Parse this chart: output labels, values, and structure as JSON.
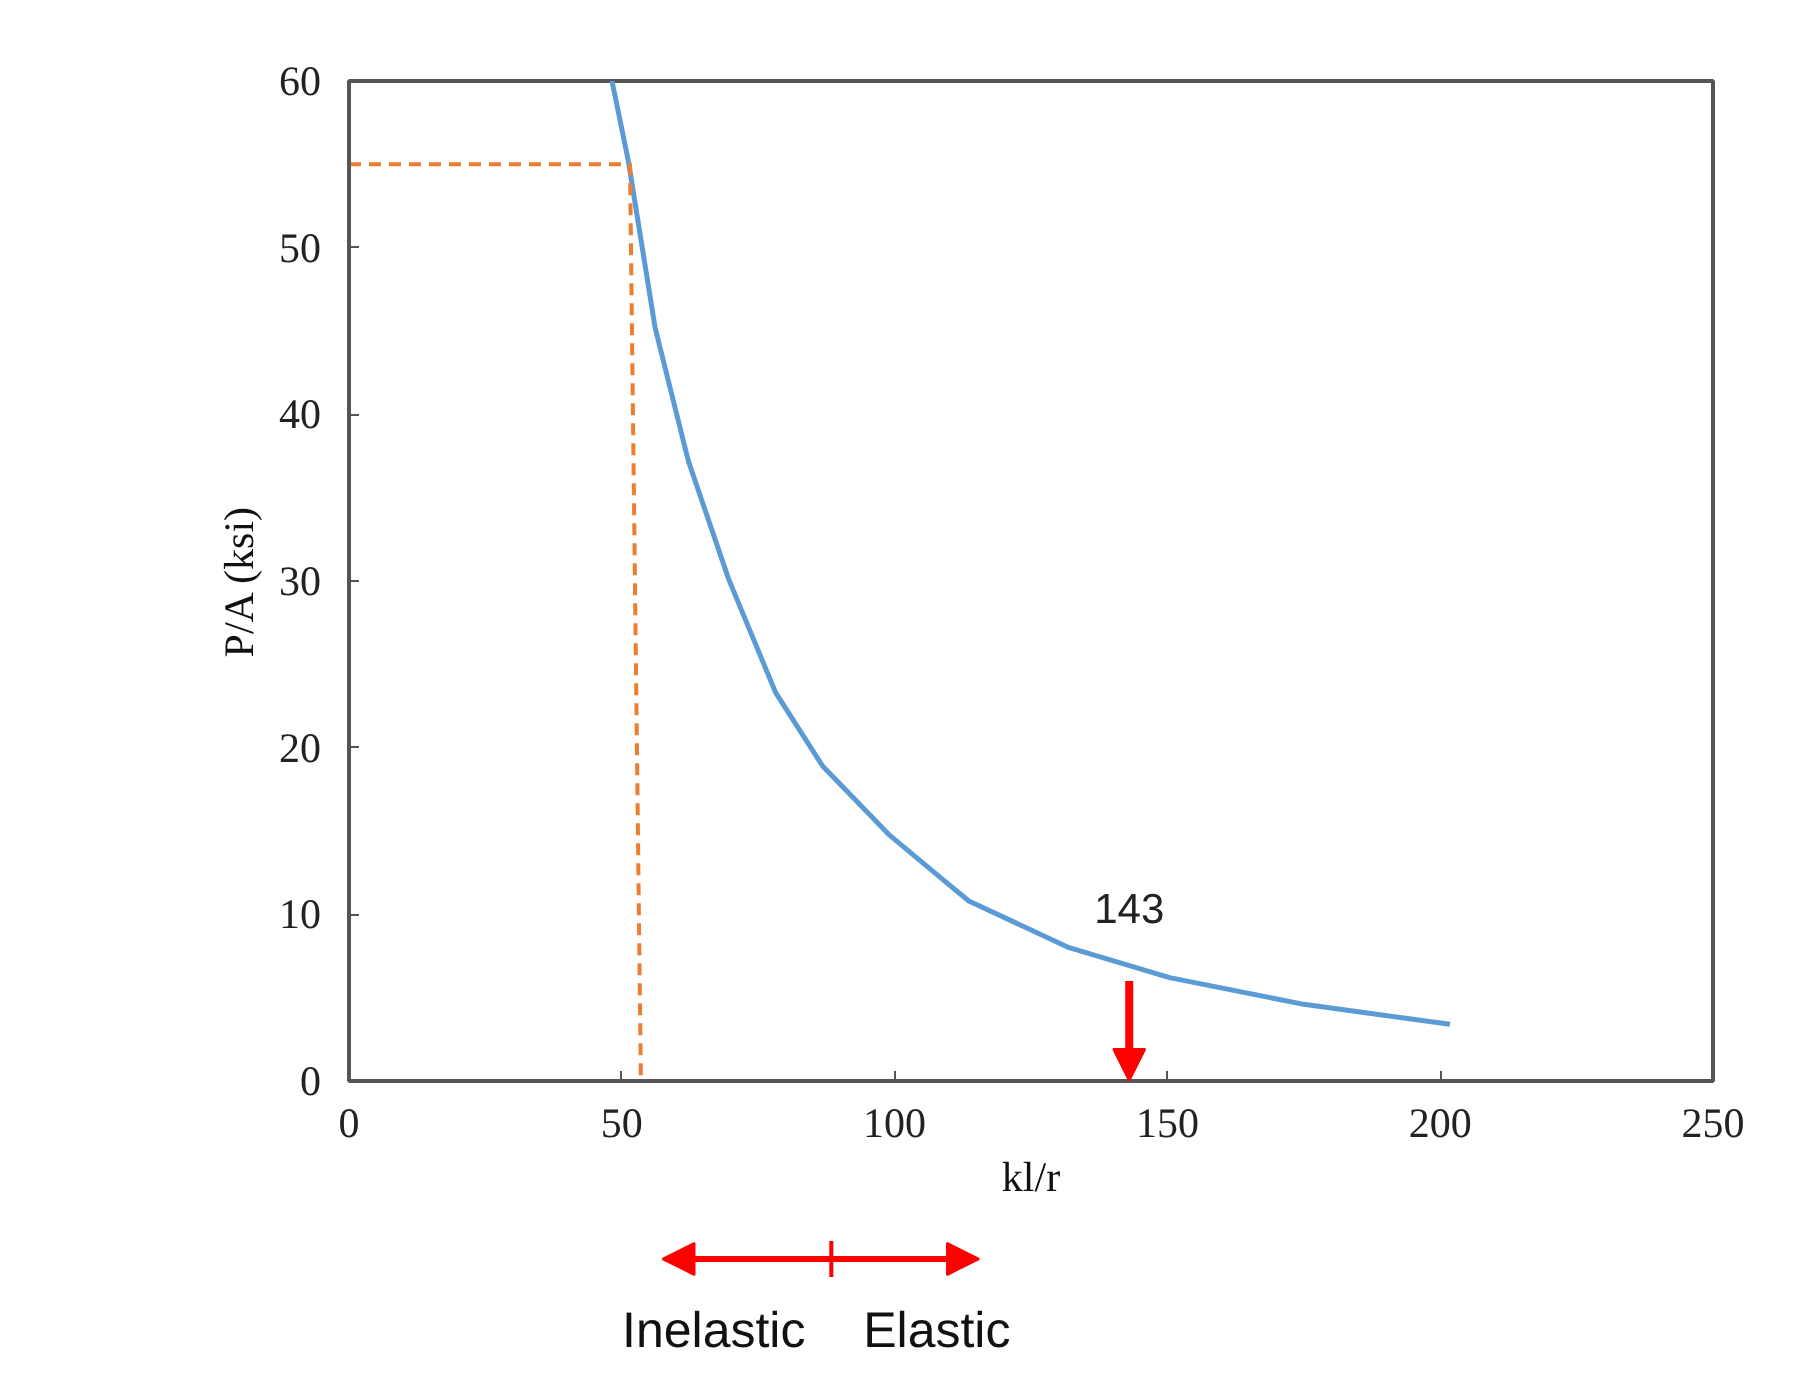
{
  "chart_data": {
    "type": "line",
    "xlabel": "kl/r",
    "ylabel": "P/A (ksi)",
    "xlim": [
      0,
      250
    ],
    "ylim": [
      0,
      60
    ],
    "xticks": [
      0,
      50,
      100,
      150,
      200,
      250
    ],
    "yticks": [
      0,
      10,
      20,
      30,
      40,
      50,
      60
    ],
    "grid": false,
    "series": [
      {
        "color": "#5b9bd5",
        "x": [
          48.2,
          51.2,
          56.1,
          62.2,
          69.6,
          78.2,
          86.8,
          98.9,
          108.8,
          113.6,
          132,
          150.4,
          175,
          201.8
        ],
        "values": [
          60,
          55.2,
          45.2,
          37.2,
          30.1,
          23.3,
          18.9,
          14.8,
          12.1,
          10.8,
          8.0,
          6.2,
          4.6,
          3.4
        ]
      },
      {
        "color": "#ed7d31",
        "line_style": "dashed",
        "x": [
          0,
          51.5,
          53.5
        ],
        "values": [
          55,
          55,
          0
        ]
      }
    ],
    "annotations": [
      {
        "text": "143",
        "x": 143,
        "y": 7
      },
      "Inelastic",
      "Elastic"
    ]
  }
}
